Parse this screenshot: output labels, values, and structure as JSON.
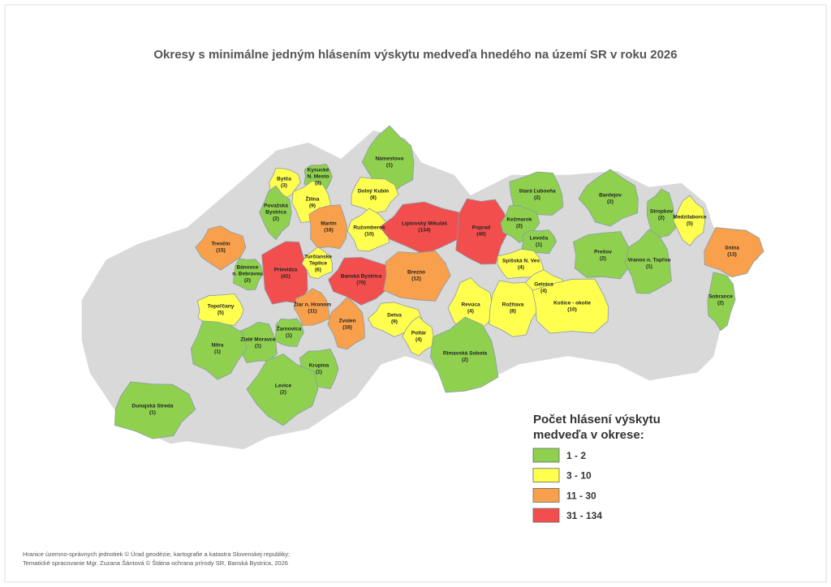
{
  "title": "Okresy s minimálne jedným hlásením výskytu medveďa hnedého na území SR v roku 2026",
  "legend": {
    "title": [
      "Počet hlásení výskytu",
      "medveďa v okrese:"
    ],
    "classes": [
      {
        "label": "1 - 2",
        "min": 1,
        "max": 2,
        "color": "#8fd14f"
      },
      {
        "label": "3 - 10",
        "min": 3,
        "max": 10,
        "color": "#ffff4f"
      },
      {
        "label": "11 - 30",
        "min": 11,
        "max": 30,
        "color": "#f8a04c"
      },
      {
        "label": "31 - 134",
        "min": 31,
        "max": 134,
        "color": "#f24e4e"
      }
    ]
  },
  "districts": [
    {
      "name": [
        "Námestovo"
      ],
      "count": 1,
      "count_label": "(1)"
    },
    {
      "name": [
        "Bytča"
      ],
      "count": 3,
      "count_label": "(3)"
    },
    {
      "name": [
        "Kysucké",
        "N. Mesto"
      ],
      "count": 2,
      "count_label": "(2)"
    },
    {
      "name": [
        "Žilina"
      ],
      "count": 9,
      "count_label": "(9)"
    },
    {
      "name": [
        "Považská",
        "Bystrica"
      ],
      "count": 2,
      "count_label": "(2)"
    },
    {
      "name": [
        "Dolný Kubín"
      ],
      "count": 8,
      "count_label": "(8)"
    },
    {
      "name": [
        "Martin"
      ],
      "count": 16,
      "count_label": "(16)"
    },
    {
      "name": [
        "Ružomberok"
      ],
      "count": 10,
      "count_label": "(10)"
    },
    {
      "name": [
        "Liptovský Mikuláš"
      ],
      "count": 134,
      "count_label": "(134)"
    },
    {
      "name": [
        "Poprad"
      ],
      "count": 40,
      "count_label": "(40)"
    },
    {
      "name": [
        "Stará Ľubovňa"
      ],
      "count": 2,
      "count_label": "(2)"
    },
    {
      "name": [
        "Bardejov"
      ],
      "count": 2,
      "count_label": "(2)"
    },
    {
      "name": [
        "Kežmarok"
      ],
      "count": 2,
      "count_label": "(2)"
    },
    {
      "name": [
        "Levoča"
      ],
      "count": 1,
      "count_label": "(1)"
    },
    {
      "name": [
        "Stropkov"
      ],
      "count": 2,
      "count_label": "(2)"
    },
    {
      "name": [
        "Medzilaborce"
      ],
      "count": 5,
      "count_label": "(5)"
    },
    {
      "name": [
        "Snina"
      ],
      "count": 13,
      "count_label": "(13)"
    },
    {
      "name": [
        "Prešov"
      ],
      "count": 2,
      "count_label": "(2)"
    },
    {
      "name": [
        "Vranov n. Topľou"
      ],
      "count": 1,
      "count_label": "(1)"
    },
    {
      "name": [
        "Trenčín"
      ],
      "count": 15,
      "count_label": "(15)"
    },
    {
      "name": [
        "Bánovce",
        "n. Bebravou"
      ],
      "count": 2,
      "count_label": "(2)"
    },
    {
      "name": [
        "Prievidza"
      ],
      "count": 41,
      "count_label": "(41)"
    },
    {
      "name": [
        "Turčianske",
        "Teplice"
      ],
      "count": 6,
      "count_label": "(6)"
    },
    {
      "name": [
        "Banská Bystrica"
      ],
      "count": 70,
      "count_label": "(70)"
    },
    {
      "name": [
        "Brezno"
      ],
      "count": 12,
      "count_label": "(12)"
    },
    {
      "name": [
        "Spišská N. Ves"
      ],
      "count": 4,
      "count_label": "(4)"
    },
    {
      "name": [
        "Gelnica"
      ],
      "count": 4,
      "count_label": "(4)"
    },
    {
      "name": [
        "Sobrance"
      ],
      "count": 2,
      "count_label": "(2)"
    },
    {
      "name": [
        "Topoľčany"
      ],
      "count": 5,
      "count_label": "(5)"
    },
    {
      "name": [
        "Žiar n. Hronom"
      ],
      "count": 11,
      "count_label": "(11)"
    },
    {
      "name": [
        "Revúca"
      ],
      "count": 4,
      "count_label": "(4)"
    },
    {
      "name": [
        "Rožňava"
      ],
      "count": 8,
      "count_label": "(8)"
    },
    {
      "name": [
        "Košice - okolie"
      ],
      "count": 10,
      "count_label": "(10)"
    },
    {
      "name": [
        "Zvolen"
      ],
      "count": 16,
      "count_label": "(16)"
    },
    {
      "name": [
        "Detva"
      ],
      "count": 9,
      "count_label": "(9)"
    },
    {
      "name": [
        "Žarnovica"
      ],
      "count": 1,
      "count_label": "(1)"
    },
    {
      "name": [
        "Zlaté Moravce"
      ],
      "count": 1,
      "count_label": "(1)"
    },
    {
      "name": [
        "Poltár"
      ],
      "count": 4,
      "count_label": "(4)"
    },
    {
      "name": [
        "Nitra"
      ],
      "count": 1,
      "count_label": "(1)"
    },
    {
      "name": [
        "Krupina"
      ],
      "count": 1,
      "count_label": "(1)"
    },
    {
      "name": [
        "Rimavská Sobota"
      ],
      "count": 2,
      "count_label": "(2)"
    },
    {
      "name": [
        "Levice"
      ],
      "count": 2,
      "count_label": "(2)"
    },
    {
      "name": [
        "Dunajská Streda"
      ],
      "count": 1,
      "count_label": "(1)"
    }
  ],
  "footer": [
    "Hranice územno-správnych jednotiek © Úrad geodézie, kartografie a katastra Slovenskej republiky;",
    "Tematické spracovanie Mgr. Zuzana Šántová © Štátna ochrana prírody SR, Banská Bystrica, 2026"
  ]
}
